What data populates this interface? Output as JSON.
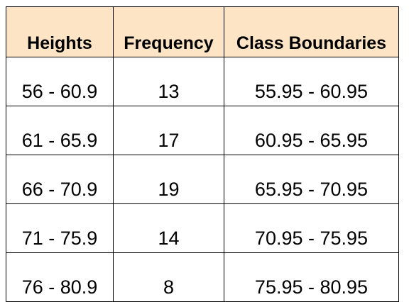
{
  "table": {
    "headers": [
      "Heights",
      "Frequency",
      "Class Boundaries"
    ],
    "rows": [
      [
        "56 - 60.9",
        "13",
        "55.95 - 60.95"
      ],
      [
        "61 - 65.9",
        "17",
        "60.95 - 65.95"
      ],
      [
        "66 - 70.9",
        "19",
        "65.95 - 70.95"
      ],
      [
        "71 - 75.9",
        "14",
        "70.95 - 75.95"
      ],
      [
        "76 - 80.9",
        "8",
        "75.95 - 80.95"
      ]
    ],
    "header_background": "#fce4c4",
    "border_color": "#000000"
  }
}
